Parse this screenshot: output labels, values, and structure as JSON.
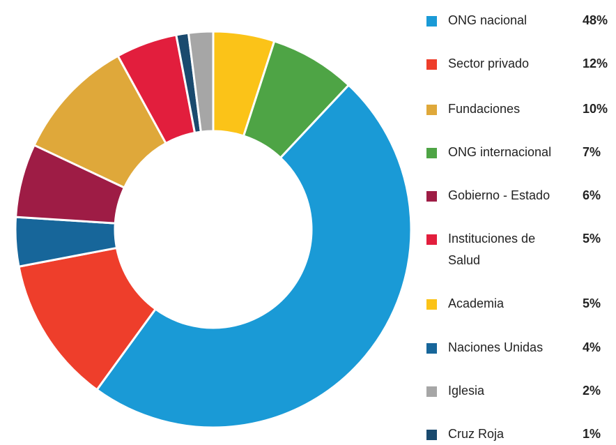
{
  "chart_data": {
    "type": "donut",
    "categories": [
      "ONG nacional",
      "Sector privado",
      "Fundaciones",
      "ONG internacional",
      "Gobierno - Estado",
      "Instituciones de Salud",
      "Academia",
      "Naciones Unidas",
      "Iglesia",
      "Cruz Roja"
    ],
    "values": [
      48,
      12,
      10,
      7,
      6,
      5,
      5,
      4,
      2,
      1
    ],
    "value_labels": [
      "48%",
      "12%",
      "10%",
      "7%",
      "6%",
      "5%",
      "5%",
      "4%",
      "2%",
      "1%"
    ],
    "colors": [
      "#1a9ad6",
      "#ee3e2b",
      "#dfa83a",
      "#4ea445",
      "#9e1c45",
      "#e21e3d",
      "#fbc318",
      "#17669a",
      "#a6a6a6",
      "#1a4a6e"
    ]
  }
}
